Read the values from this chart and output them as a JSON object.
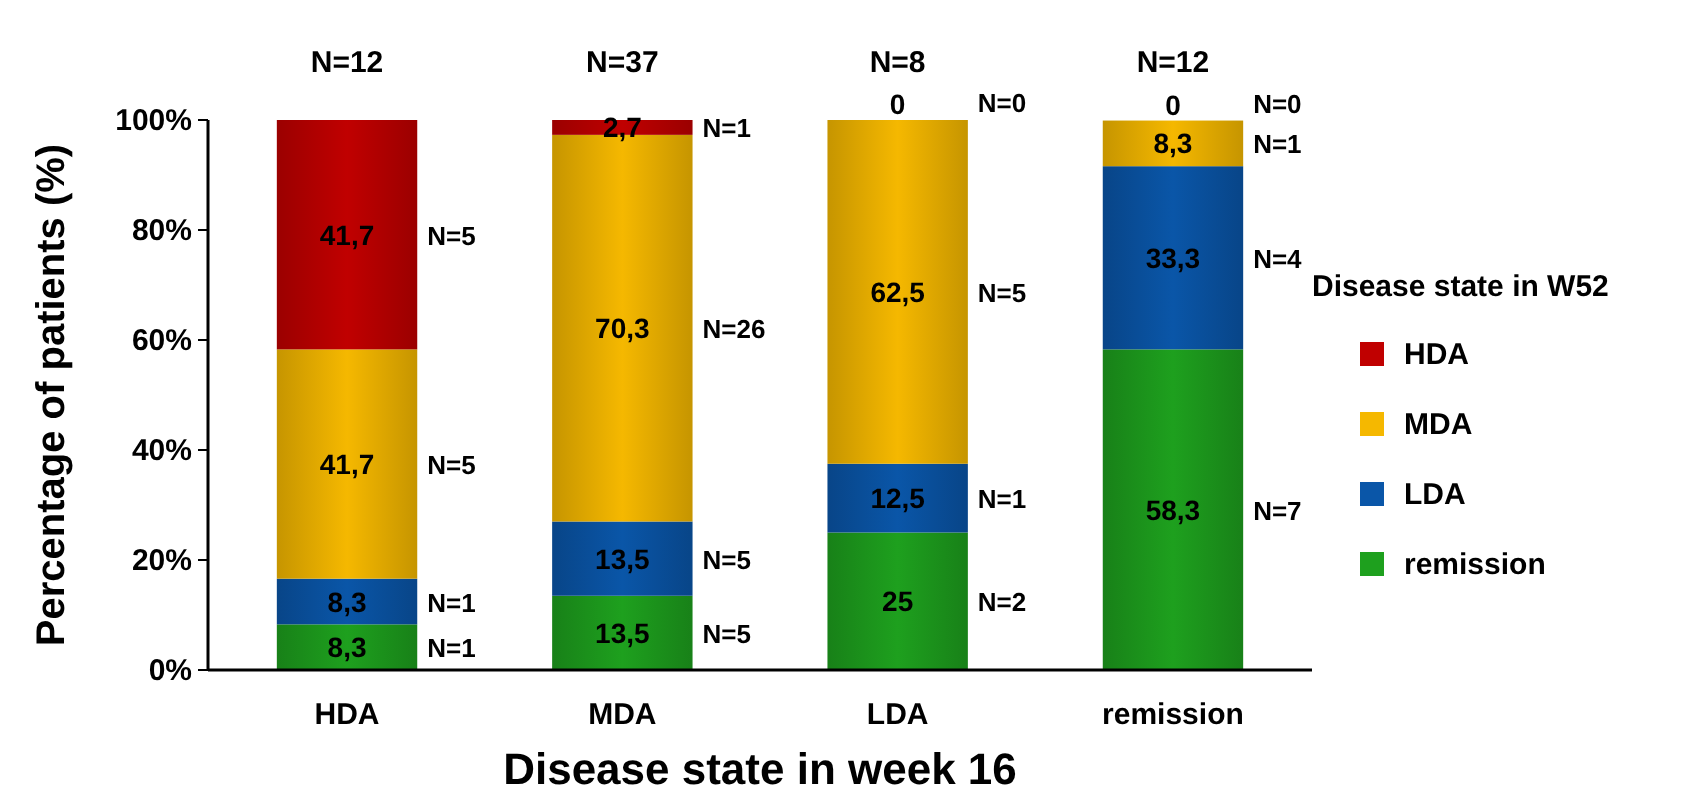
{
  "chart_data": {
    "type": "bar",
    "stacked": true,
    "xlabel": "Disease state in week 16",
    "ylabel": "Percentage of patients (%)",
    "legend_title": "Disease state in W52",
    "legend": "right",
    "categories": [
      "HDA",
      "MDA",
      "LDA",
      "remission"
    ],
    "ylim": [
      0,
      100
    ],
    "yticks": [
      {
        "value": 0,
        "label": "0%"
      },
      {
        "value": 20,
        "label": "20%"
      },
      {
        "value": 40,
        "label": "40%"
      },
      {
        "value": 60,
        "label": "60%"
      },
      {
        "value": 80,
        "label": "80%"
      },
      {
        "value": 100,
        "label": "100%"
      }
    ],
    "series": [
      {
        "name": "remission",
        "color": "#1ea01e",
        "values": [
          8.3,
          13.5,
          25,
          58.3
        ],
        "value_labels": [
          "8,3",
          "13,5",
          "25",
          "58,3"
        ]
      },
      {
        "name": "LDA",
        "color": "#0a56a8",
        "values": [
          8.3,
          13.5,
          12.5,
          33.3
        ],
        "value_labels": [
          "8,3",
          "13,5",
          "12,5",
          "33,3"
        ]
      },
      {
        "name": "MDA",
        "color": "#f5b800",
        "values": [
          41.7,
          70.3,
          62.5,
          8.3
        ],
        "value_labels": [
          "41,7",
          "70,3",
          "62,5",
          "8,3"
        ]
      },
      {
        "name": "HDA",
        "color": "#c00000",
        "values": [
          41.7,
          2.7,
          0,
          0
        ],
        "value_labels": [
          "41,7",
          "2,7",
          "0",
          "0"
        ]
      }
    ],
    "annotations": [
      "N=12",
      "N=37",
      "N=8",
      "N=12",
      "N=1",
      "N=5",
      "N=2",
      "N=7",
      "N=1",
      "N=5",
      "N=1",
      "N=4",
      "N=5",
      "N=26",
      "N=5",
      "N=1",
      "N=5",
      "N=1",
      "N=0",
      "N=0"
    ]
  }
}
